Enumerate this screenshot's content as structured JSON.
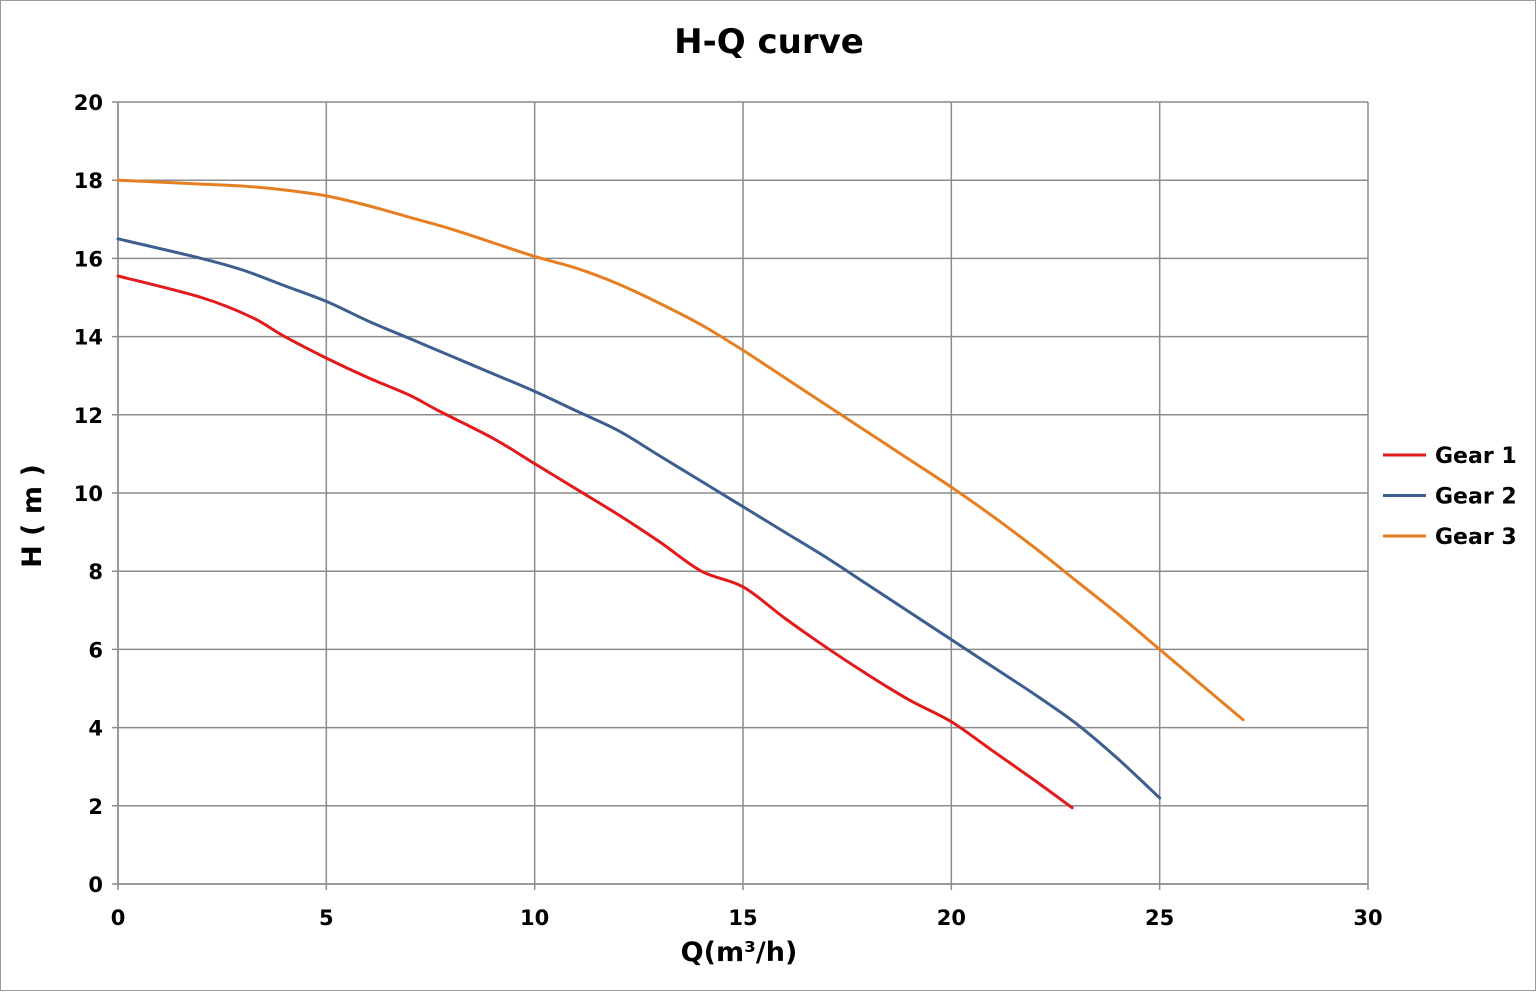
{
  "chart_data": {
    "type": "line",
    "title": "H-Q  curve",
    "xlabel": "Q(m³/h)",
    "ylabel": "H ( m )",
    "xlim": [
      0,
      30
    ],
    "ylim": [
      0,
      20
    ],
    "xticks": [
      0,
      5,
      10,
      15,
      20,
      25,
      30
    ],
    "yticks": [
      0,
      2,
      4,
      6,
      8,
      10,
      12,
      14,
      16,
      18,
      20
    ],
    "grid": true,
    "legend_position": "right",
    "series": [
      {
        "name": "Gear 1",
        "color": "#e31a1c",
        "points": [
          [
            0,
            15.55
          ],
          [
            2,
            15.0
          ],
          [
            3.2,
            14.5
          ],
          [
            4,
            14.0
          ],
          [
            5,
            13.45
          ],
          [
            6,
            12.95
          ],
          [
            7,
            12.5
          ],
          [
            7.7,
            12.1
          ],
          [
            9,
            11.4
          ],
          [
            10,
            10.75
          ],
          [
            11,
            10.1
          ],
          [
            12,
            9.45
          ],
          [
            13,
            8.75
          ],
          [
            14,
            8.0
          ],
          [
            15,
            7.6
          ],
          [
            16,
            6.8
          ],
          [
            17,
            6.05
          ],
          [
            18,
            5.35
          ],
          [
            19,
            4.7
          ],
          [
            20,
            4.15
          ],
          [
            21,
            3.4
          ],
          [
            22,
            2.65
          ],
          [
            22.9,
            1.95
          ]
        ]
      },
      {
        "name": "Gear 2",
        "color": "#3d5f8f",
        "points": [
          [
            0,
            16.5
          ],
          [
            2,
            16.0
          ],
          [
            3,
            15.7
          ],
          [
            4,
            15.3
          ],
          [
            5,
            14.9
          ],
          [
            6,
            14.4
          ],
          [
            7,
            13.95
          ],
          [
            8,
            13.5
          ],
          [
            9,
            13.05
          ],
          [
            10,
            12.6
          ],
          [
            11,
            12.1
          ],
          [
            12,
            11.6
          ],
          [
            13,
            10.95
          ],
          [
            14,
            10.3
          ],
          [
            15,
            9.65
          ],
          [
            16,
            9.0
          ],
          [
            17,
            8.35
          ],
          [
            18,
            7.65
          ],
          [
            19,
            6.95
          ],
          [
            20,
            6.25
          ],
          [
            21,
            5.55
          ],
          [
            22,
            4.85
          ],
          [
            23,
            4.1
          ],
          [
            24,
            3.2
          ],
          [
            25,
            2.2
          ]
        ]
      },
      {
        "name": "Gear 3",
        "color": "#e67e22",
        "points": [
          [
            0,
            18.0
          ],
          [
            1,
            17.95
          ],
          [
            2,
            17.9
          ],
          [
            3,
            17.85
          ],
          [
            4,
            17.75
          ],
          [
            5,
            17.6
          ],
          [
            6,
            17.35
          ],
          [
            7,
            17.05
          ],
          [
            8,
            16.75
          ],
          [
            9,
            16.4
          ],
          [
            10,
            16.05
          ],
          [
            11,
            15.75
          ],
          [
            12,
            15.35
          ],
          [
            13,
            14.85
          ],
          [
            14,
            14.3
          ],
          [
            15,
            13.65
          ],
          [
            16,
            12.95
          ],
          [
            17,
            12.25
          ],
          [
            18,
            11.55
          ],
          [
            19,
            10.85
          ],
          [
            20,
            10.15
          ],
          [
            21,
            9.4
          ],
          [
            22,
            8.6
          ],
          [
            23,
            7.75
          ],
          [
            24,
            6.9
          ],
          [
            25,
            6.0
          ],
          [
            26,
            5.1
          ],
          [
            27,
            4.2
          ]
        ]
      }
    ]
  }
}
